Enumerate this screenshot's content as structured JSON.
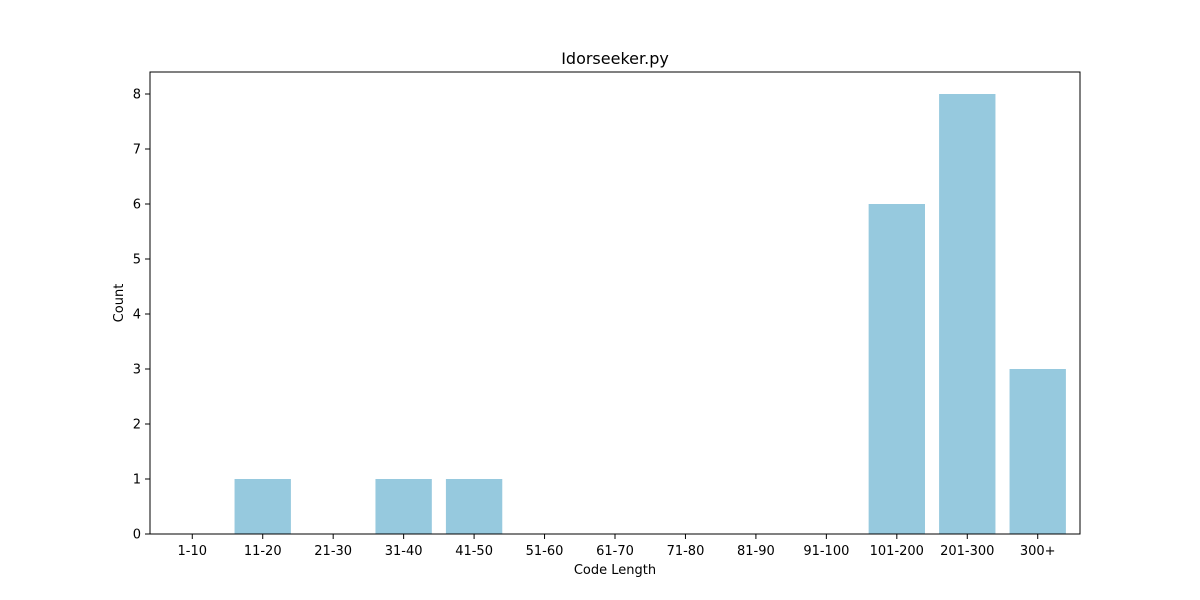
{
  "chart_data": {
    "type": "bar",
    "title": "Idorseeker.py",
    "xlabel": "Code Length",
    "ylabel": "Count",
    "categories": [
      "1-10",
      "11-20",
      "21-30",
      "31-40",
      "41-50",
      "51-60",
      "61-70",
      "71-80",
      "81-90",
      "91-100",
      "101-200",
      "201-300",
      "300+"
    ],
    "values": [
      0,
      1,
      0,
      1,
      1,
      0,
      0,
      0,
      0,
      0,
      6,
      8,
      3
    ],
    "ylim": [
      0,
      8.4
    ],
    "yticks": [
      0,
      1,
      2,
      3,
      4,
      5,
      6,
      7,
      8
    ],
    "grid": false,
    "bar_color": "#96c9de"
  }
}
